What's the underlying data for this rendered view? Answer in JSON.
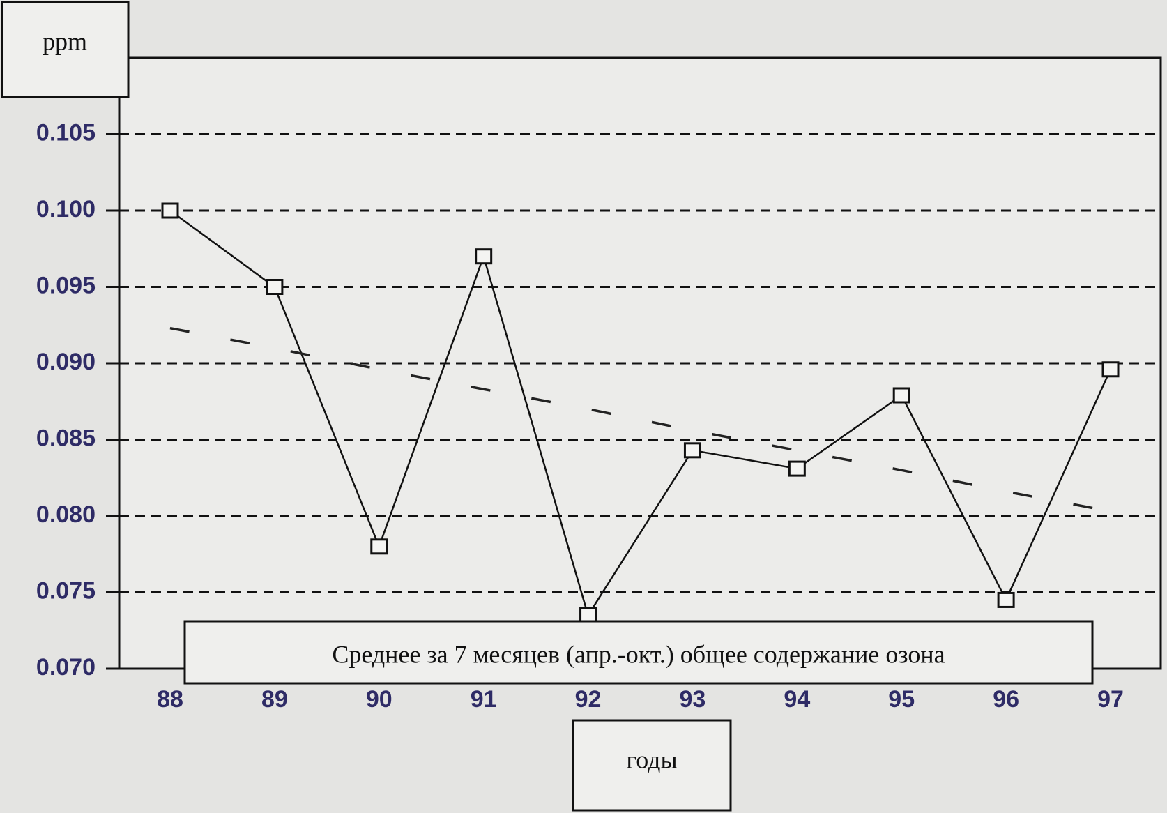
{
  "chart_data": {
    "type": "line",
    "y_label": "ppm",
    "x_label": "годы",
    "annotation": "Среднее за 7 месяцев (апр.-окт.) общее содержание озона",
    "categories": [
      "88",
      "89",
      "90",
      "91",
      "92",
      "93",
      "94",
      "95",
      "96",
      "97"
    ],
    "series": [
      {
        "color": "#111111",
        "style": "solid",
        "marker": "square",
        "values": [
          0.1,
          0.095,
          0.078,
          0.097,
          0.0735,
          0.0843,
          0.0831,
          0.0879,
          0.0745,
          0.0896
        ]
      },
      {
        "color": "#222222",
        "style": "dashed",
        "marker": "none",
        "values": [
          0.0923,
          0.091,
          0.0896,
          0.0883,
          0.087,
          0.0856,
          0.0843,
          0.083,
          0.0816,
          0.0803
        ]
      }
    ],
    "ylim": [
      0.07,
      0.11
    ],
    "yticks": [
      {
        "value": 0.07,
        "label": "0.070"
      },
      0.075,
      {
        "value": 0.08,
        "label": "0.080"
      },
      0.085,
      {
        "value": 0.09,
        "label": "0.090"
      },
      0.095,
      {
        "value": 0.1,
        "label": "0.100"
      },
      0.105
    ],
    "grid": true
  }
}
